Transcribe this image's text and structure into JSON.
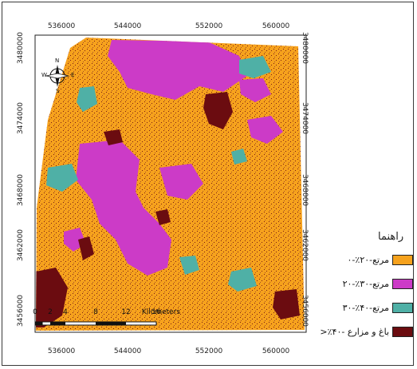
{
  "map": {
    "x_ticks": [
      "536000",
      "544000",
      "552000",
      "560000"
    ],
    "y_ticks": [
      "3480000",
      "3474000",
      "3468000",
      "3462000",
      "3456000"
    ],
    "north_arrow": {
      "icon": "compass-rose-icon",
      "labels": [
        "N",
        "E",
        "S",
        "W"
      ]
    },
    "scale_bar": {
      "labels": [
        "0",
        "2",
        "4",
        "8",
        "12",
        "16"
      ],
      "unit": "Kilometers"
    },
    "colors": {
      "orange": "#f6a21d",
      "magenta": "#cc3bc7",
      "teal": "#4fb0a6",
      "maroon": "#6b0c10",
      "nodata": "#ffffff"
    }
  },
  "legend": {
    "title": "راهنما",
    "items": [
      {
        "label": "مرتع-۲۰٪-۰",
        "color": "#f6a21d"
      },
      {
        "label": "مرتع-۳۰٪-۲۰",
        "color": "#cc3bc7"
      },
      {
        "label": "مرتع-۴۰٪-۳۰",
        "color": "#4fb0a6"
      },
      {
        "label": "باغ و مزارع -۴۰٪<",
        "color": "#6b0c10"
      }
    ]
  }
}
